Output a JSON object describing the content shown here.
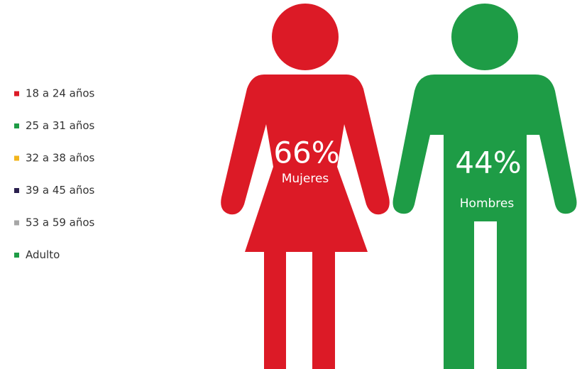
{
  "legend": [
    {
      "label": "18 a 24 años",
      "color": "#dc1a26"
    },
    {
      "label": "25 a 31 años",
      "color": "#1e9c46"
    },
    {
      "label": "32 a 38 años",
      "color": "#f2b51c"
    },
    {
      "label": "39 a 45 años",
      "color": "#2a1f4e"
    },
    {
      "label": "53 a 59 años",
      "color": "#a6a6a6"
    },
    {
      "label": "Adulto",
      "color": "#1e9c46"
    }
  ],
  "figures": [
    {
      "percent": "66%",
      "label": "Mujeres",
      "color": "#dc1a26"
    },
    {
      "percent": "44%",
      "label": "Hombres",
      "color": "#1e9c46"
    }
  ]
}
